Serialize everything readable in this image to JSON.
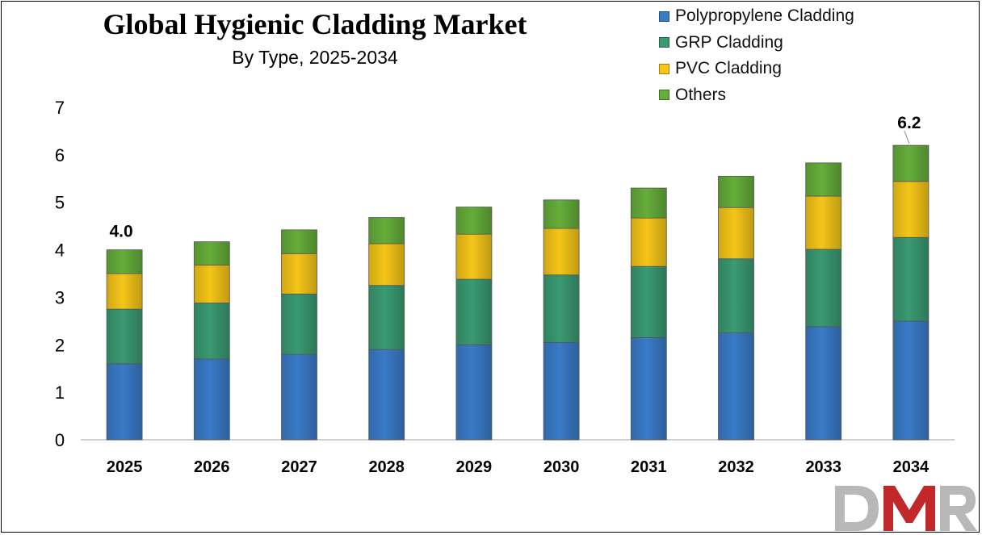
{
  "title": "Global Hygienic Cladding Market",
  "subtitle": "By Type, 2025-2034",
  "brand": "DMR",
  "colors": {
    "Polypropylene Cladding": "#3a7bc8",
    "GRP Cladding": "#3a9a72",
    "PVC Cladding": "#f5c518",
    "Others": "#65ad3a"
  },
  "chart_data": {
    "type": "bar",
    "stacked": true,
    "categories": [
      "2025",
      "2026",
      "2027",
      "2028",
      "2029",
      "2030",
      "2031",
      "2032",
      "2033",
      "2034"
    ],
    "series": [
      {
        "name": "Polypropylene Cladding",
        "values": [
          1.6,
          1.7,
          1.8,
          1.9,
          2.0,
          2.05,
          2.15,
          2.25,
          2.38,
          2.5
        ]
      },
      {
        "name": "GRP Cladding",
        "values": [
          1.15,
          1.18,
          1.27,
          1.35,
          1.38,
          1.42,
          1.5,
          1.56,
          1.63,
          1.76
        ]
      },
      {
        "name": "PVC Cladding",
        "values": [
          0.75,
          0.8,
          0.85,
          0.88,
          0.95,
          0.98,
          1.02,
          1.08,
          1.12,
          1.18
        ]
      },
      {
        "name": "Others",
        "values": [
          0.5,
          0.49,
          0.5,
          0.55,
          0.57,
          0.6,
          0.63,
          0.66,
          0.7,
          0.76
        ]
      }
    ],
    "ylim": [
      0,
      7
    ],
    "yticks": [
      0,
      1,
      2,
      3,
      4,
      5,
      6,
      7
    ],
    "annotations": [
      {
        "category": "2025",
        "label": "4.0"
      },
      {
        "category": "2034",
        "label": "6.2"
      }
    ],
    "legend": "top-right",
    "grid": false
  }
}
